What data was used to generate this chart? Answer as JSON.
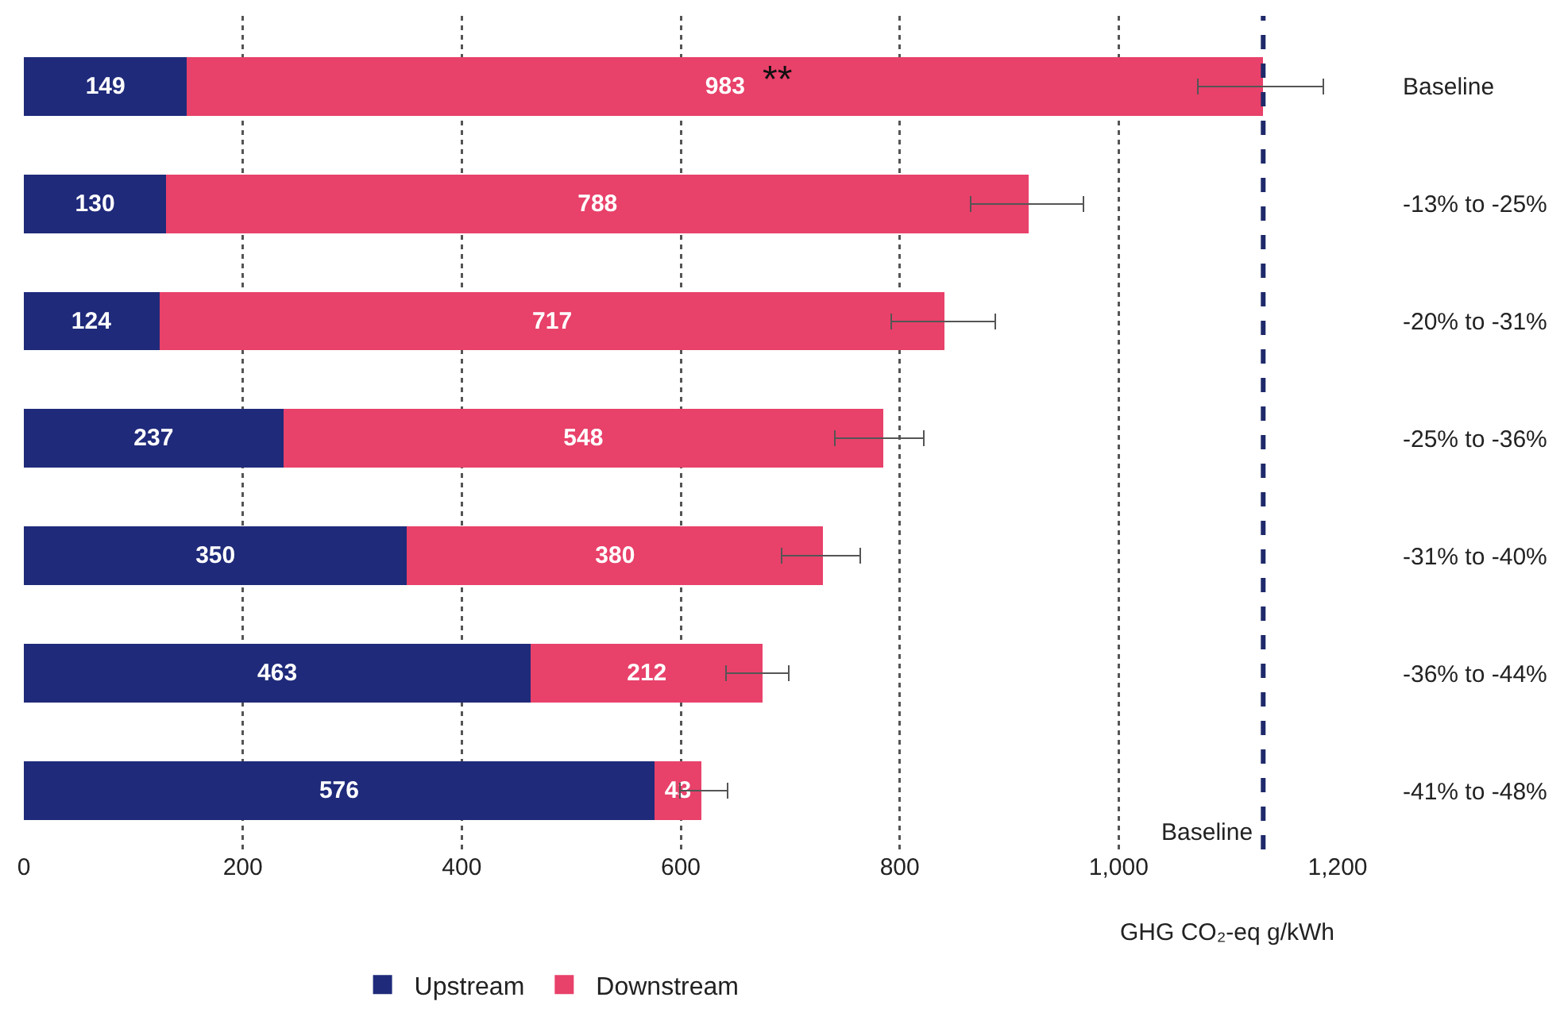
{
  "chart_data": {
    "type": "bar",
    "orientation": "horizontal",
    "stacked": true,
    "categories": [
      "Baseline",
      "-13% to -25%",
      "-20% to -31%",
      "-25% to -36%",
      "-31% to -40%",
      "-36% to -44%",
      "-41% to -48%"
    ],
    "series": [
      {
        "name": "Upstream",
        "color": "#1f2a7a",
        "values": [
          149,
          130,
          124,
          237,
          350,
          463,
          576
        ]
      },
      {
        "name": "Downstream",
        "color": "#e8416a",
        "values": [
          983,
          788,
          717,
          548,
          380,
          212,
          43
        ],
        "errors": [
          [
            1072,
            1187
          ],
          [
            865,
            968
          ],
          [
            792,
            887
          ],
          [
            741,
            822
          ],
          [
            692,
            764
          ],
          [
            641,
            699
          ],
          [
            599,
            643
          ]
        ]
      }
    ],
    "xlim": [
      0,
      1200
    ],
    "xticks": [
      0,
      200,
      400,
      600,
      800,
      {
        "value": 1000,
        "label": "1,000"
      },
      {
        "value": 1200,
        "label": "1,200"
      }
    ],
    "xlabel": "GHG CO₂-eq g/kWh",
    "ref_lines": [
      {
        "axis": "x",
        "value": 1132,
        "label": "Baseline",
        "color": "#1f2a6b",
        "line_style": "dashed"
      }
    ],
    "annotations": [
      "**"
    ],
    "data_labels": true,
    "grid": "x",
    "legend": "bottom"
  }
}
